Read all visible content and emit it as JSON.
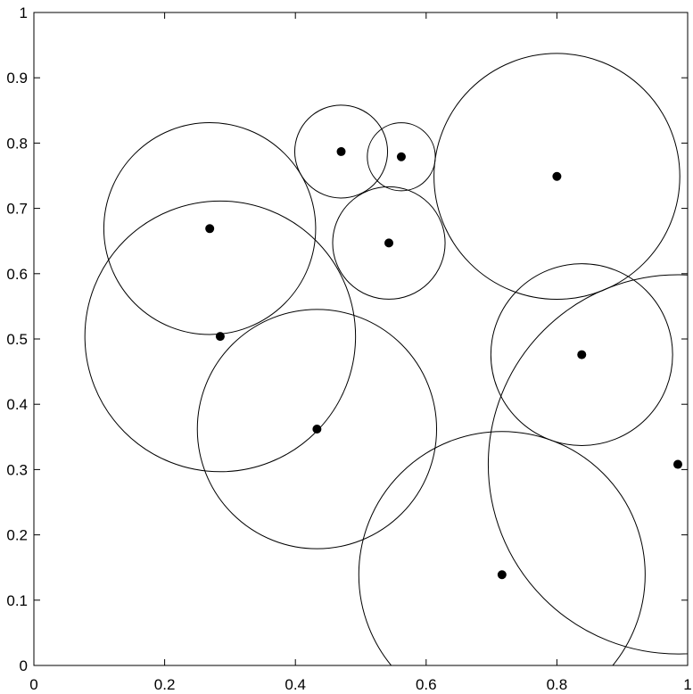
{
  "chart_data": {
    "type": "scatter",
    "title": "",
    "xlabel": "",
    "ylabel": "",
    "xlim": [
      0,
      1
    ],
    "ylim": [
      0,
      1
    ],
    "grid": false,
    "x_ticks": [
      "0",
      "0.2",
      "0.4",
      "0.6",
      "0.8",
      "1"
    ],
    "y_ticks": [
      "0",
      "0.1",
      "0.2",
      "0.3",
      "0.4",
      "0.5",
      "0.6",
      "0.7",
      "0.8",
      "0.9",
      "1"
    ],
    "x_tick_values": [
      0,
      0.2,
      0.4,
      0.6,
      0.8,
      1
    ],
    "y_tick_values": [
      0,
      0.1,
      0.2,
      0.3,
      0.4,
      0.5,
      0.6,
      0.7,
      0.8,
      0.9,
      1
    ],
    "points": [
      {
        "x": 0.269,
        "y": 0.669
      },
      {
        "x": 0.285,
        "y": 0.504
      },
      {
        "x": 0.47,
        "y": 0.787
      },
      {
        "x": 0.562,
        "y": 0.779
      },
      {
        "x": 0.543,
        "y": 0.647
      },
      {
        "x": 0.433,
        "y": 0.362
      },
      {
        "x": 0.8,
        "y": 0.749
      },
      {
        "x": 0.838,
        "y": 0.476
      },
      {
        "x": 0.985,
        "y": 0.308
      },
      {
        "x": 0.716,
        "y": 0.139
      }
    ],
    "circles": [
      {
        "cx": 0.269,
        "cy": 0.669,
        "r": 0.162
      },
      {
        "cx": 0.285,
        "cy": 0.504,
        "r": 0.207
      },
      {
        "cx": 0.47,
        "cy": 0.787,
        "r": 0.071
      },
      {
        "cx": 0.562,
        "cy": 0.779,
        "r": 0.052
      },
      {
        "cx": 0.543,
        "cy": 0.647,
        "r": 0.086
      },
      {
        "cx": 0.433,
        "cy": 0.362,
        "r": 0.183
      },
      {
        "cx": 0.8,
        "cy": 0.749,
        "r": 0.188
      },
      {
        "cx": 0.838,
        "cy": 0.476,
        "r": 0.139
      },
      {
        "cx": 0.985,
        "cy": 0.308,
        "r": 0.29
      },
      {
        "cx": 0.716,
        "cy": 0.139,
        "r": 0.219
      }
    ],
    "point_color": "#000000",
    "circle_color": "#000000"
  }
}
